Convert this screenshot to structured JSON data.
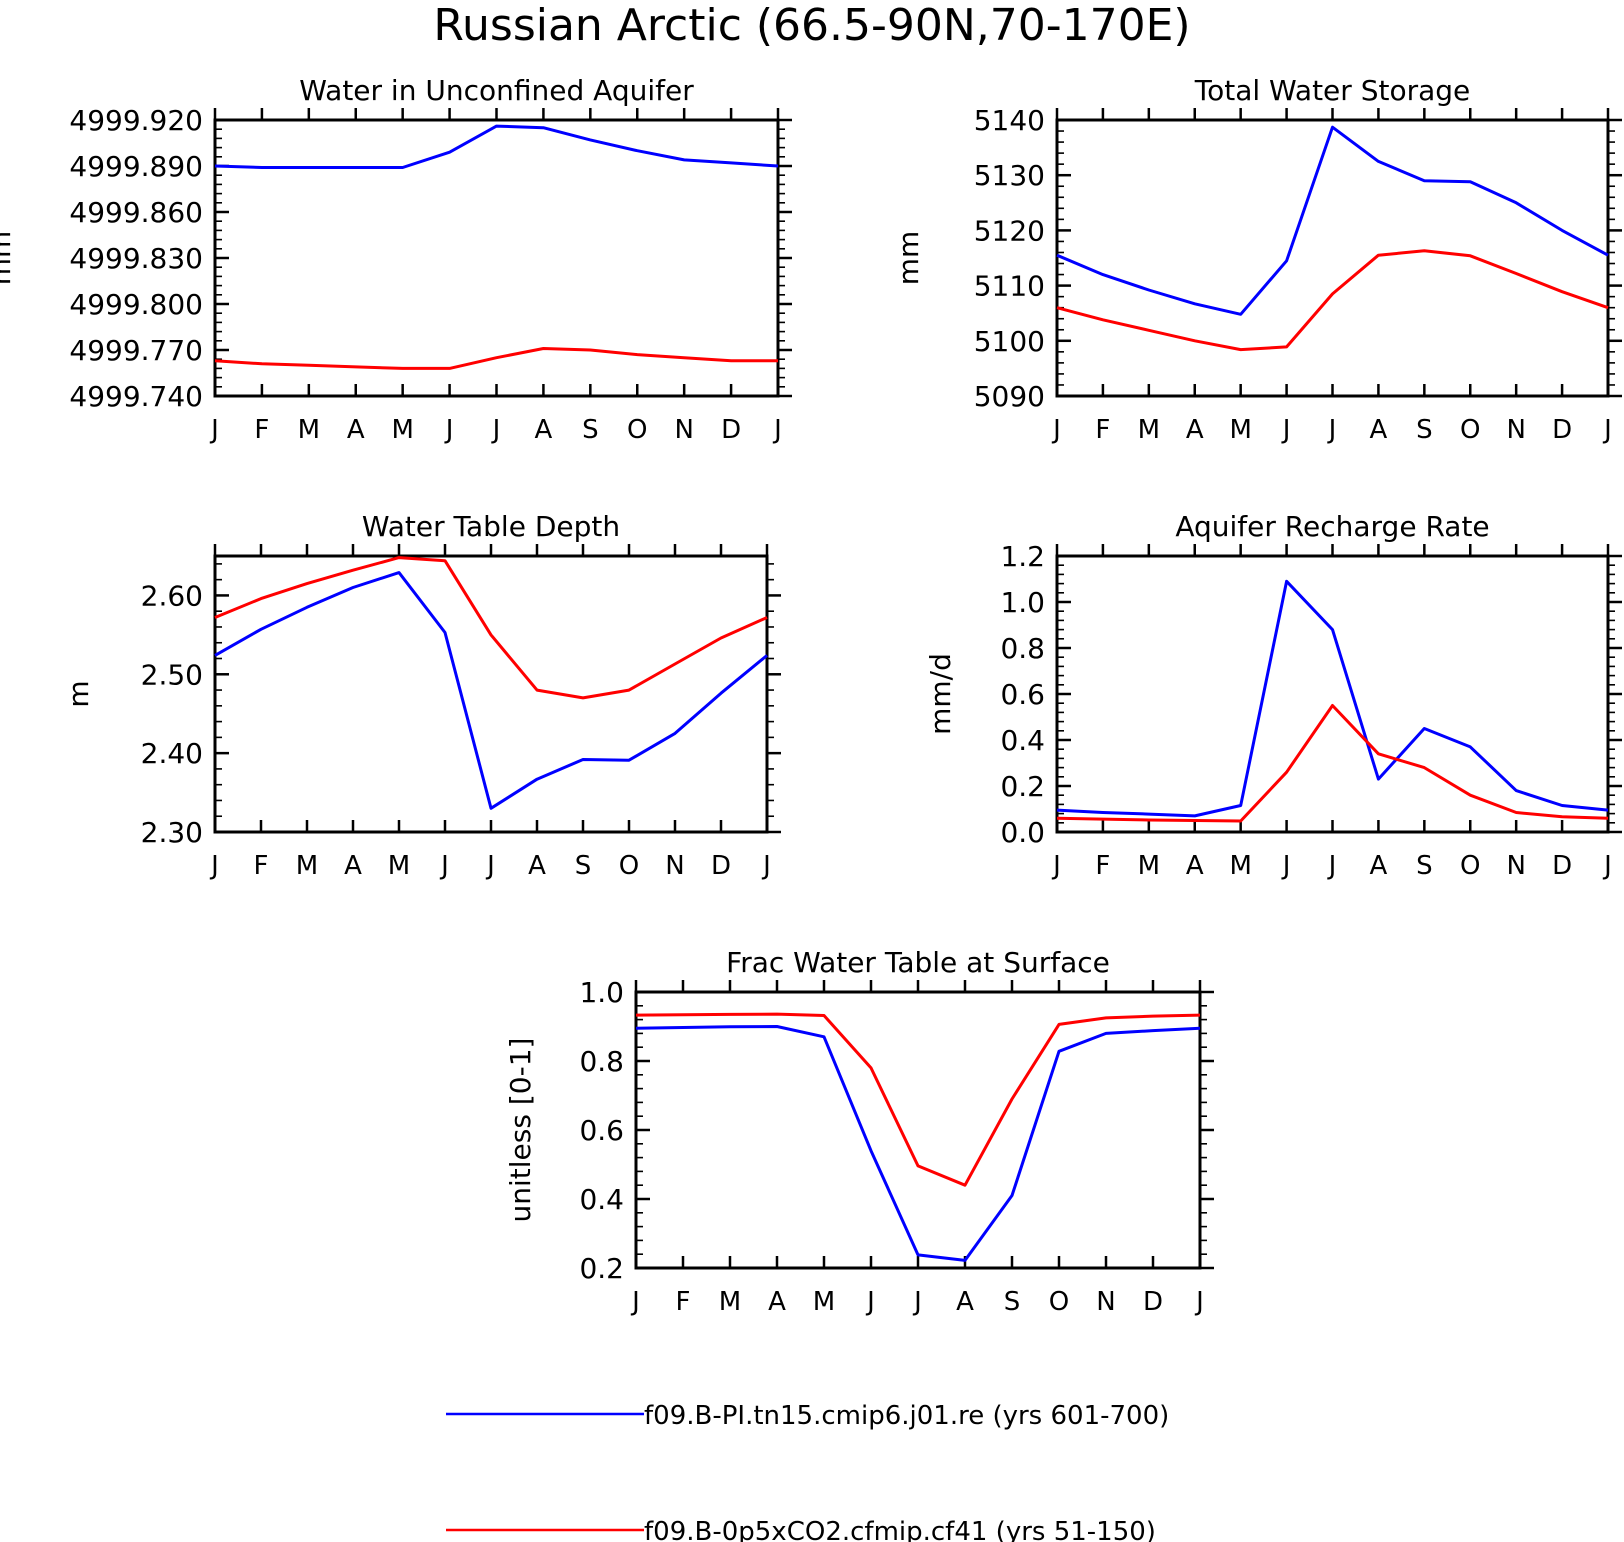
{
  "figure_title": "Russian Arctic (66.5-90N,70-170E)",
  "colors": {
    "blue": "#0000ff",
    "red": "#ff0000",
    "axis": "#000000"
  },
  "months": [
    "J",
    "F",
    "M",
    "A",
    "M",
    "J",
    "J",
    "A",
    "S",
    "O",
    "N",
    "D",
    "J"
  ],
  "legend": [
    {
      "label": "f09.B-PI.tn15.cmip6.j01.re (yrs 601-700)",
      "color": "#0000ff"
    },
    {
      "label": "f09.B-0p5xCO2.cfmip.cf41 (yrs 51-150)",
      "color": "#ff0000"
    }
  ],
  "chart_data": [
    {
      "type": "line",
      "title": "Water in Unconfined Aquifer",
      "ylabel": "mm",
      "ylim": [
        4999.74,
        4999.92
      ],
      "yticks": [
        4999.92,
        4999.89,
        4999.86,
        4999.83,
        4999.8,
        4999.77,
        4999.74
      ],
      "ytick_labels": [
        "4999.920",
        "4999.890",
        "4999.860",
        "4999.830",
        "4999.800",
        "4999.770",
        "4999.740"
      ],
      "series": [
        {
          "color": "#0000ff",
          "values": [
            4999.89,
            4999.889,
            4999.889,
            4999.889,
            4999.889,
            4999.899,
            4999.916,
            4999.915,
            4999.907,
            4999.9,
            4999.894,
            4999.892,
            4999.89
          ]
        },
        {
          "color": "#ff0000",
          "values": [
            4999.763,
            4999.761,
            4999.76,
            4999.759,
            4999.758,
            4999.758,
            4999.765,
            4999.771,
            4999.77,
            4999.767,
            4999.765,
            4999.763,
            4999.763
          ]
        }
      ]
    },
    {
      "type": "line",
      "title": "Total Water Storage",
      "ylabel": "mm",
      "ylim": [
        5090,
        5140
      ],
      "yticks": [
        5140,
        5130,
        5120,
        5110,
        5100,
        5090
      ],
      "ytick_labels": [
        "5140",
        "5130",
        "5120",
        "5110",
        "5100",
        "5090"
      ],
      "series": [
        {
          "color": "#0000ff",
          "values": [
            5115.5,
            5112.0,
            5109.2,
            5106.7,
            5104.8,
            5114.5,
            5138.7,
            5132.5,
            5129.0,
            5128.8,
            5125.0,
            5120.0,
            5115.5
          ]
        },
        {
          "color": "#ff0000",
          "values": [
            5106.0,
            5103.8,
            5101.9,
            5100.0,
            5098.4,
            5098.9,
            5108.5,
            5115.5,
            5116.3,
            5115.4,
            5112.2,
            5108.9,
            5106.0
          ]
        }
      ]
    },
    {
      "type": "line",
      "title": "Water Table Depth",
      "ylabel": "m",
      "ylim": [
        2.3,
        2.65
      ],
      "yticks": [
        2.6,
        2.5,
        2.4,
        2.3
      ],
      "ytick_labels": [
        "2.60",
        "2.50",
        "2.40",
        "2.30"
      ],
      "series": [
        {
          "color": "#0000ff",
          "values": [
            2.524,
            2.557,
            2.585,
            2.61,
            2.629,
            2.553,
            2.33,
            2.367,
            2.392,
            2.391,
            2.425,
            2.476,
            2.524
          ]
        },
        {
          "color": "#ff0000",
          "values": [
            2.572,
            2.596,
            2.615,
            2.632,
            2.648,
            2.644,
            2.55,
            2.48,
            2.47,
            2.48,
            2.513,
            2.546,
            2.572
          ]
        }
      ]
    },
    {
      "type": "line",
      "title": "Aquifer Recharge Rate",
      "ylabel": "mm/d",
      "ylim": [
        0.0,
        1.2
      ],
      "yticks": [
        1.2,
        1.0,
        0.8,
        0.6,
        0.4,
        0.2,
        0.0
      ],
      "ytick_labels": [
        "1.2",
        "1.0",
        "0.8",
        "0.6",
        "0.4",
        "0.2",
        "0.0"
      ],
      "series": [
        {
          "color": "#0000ff",
          "values": [
            0.095,
            0.085,
            0.078,
            0.07,
            0.115,
            1.09,
            0.88,
            0.23,
            0.45,
            0.37,
            0.18,
            0.115,
            0.095
          ]
        },
        {
          "color": "#ff0000",
          "values": [
            0.06,
            0.056,
            0.052,
            0.05,
            0.048,
            0.26,
            0.55,
            0.34,
            0.28,
            0.16,
            0.085,
            0.066,
            0.06
          ]
        }
      ]
    },
    {
      "type": "line",
      "title": "Frac Water Table at Surface",
      "ylabel": "unitless [0-1]",
      "ylim": [
        0.2,
        1.0
      ],
      "yticks": [
        1.0,
        0.8,
        0.6,
        0.4,
        0.2
      ],
      "ytick_labels": [
        "1.0",
        "0.8",
        "0.6",
        "0.4",
        "0.2"
      ],
      "series": [
        {
          "color": "#0000ff",
          "values": [
            0.895,
            0.897,
            0.899,
            0.9,
            0.87,
            0.54,
            0.238,
            0.222,
            0.41,
            0.828,
            0.88,
            0.888,
            0.895
          ]
        },
        {
          "color": "#ff0000",
          "values": [
            0.933,
            0.934,
            0.935,
            0.936,
            0.932,
            0.78,
            0.496,
            0.44,
            0.69,
            0.906,
            0.925,
            0.93,
            0.933
          ]
        }
      ]
    }
  ]
}
